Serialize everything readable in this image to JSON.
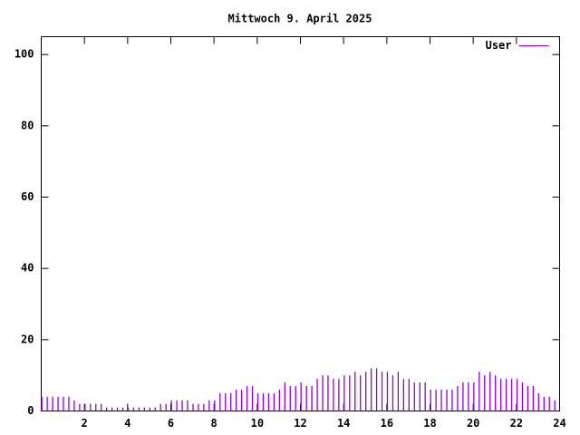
{
  "chart_data": {
    "type": "impulse",
    "title": "Mittwoch 9. April 2025",
    "series": [
      {
        "name": "User",
        "color": "#9400d3",
        "values": [
          4,
          4,
          4,
          4,
          4,
          4,
          3,
          2,
          2,
          2,
          2,
          2,
          1,
          1,
          1,
          1,
          1,
          1,
          1,
          1,
          1,
          1,
          2,
          2,
          3,
          3,
          3,
          3,
          2,
          2,
          2,
          3,
          3,
          5,
          5,
          5,
          6,
          6,
          7,
          7,
          5,
          5,
          5,
          5,
          6,
          8,
          7,
          7,
          8,
          7,
          7,
          9,
          10,
          10,
          9,
          9,
          10,
          10,
          11,
          10,
          11,
          12,
          12,
          11,
          11,
          10,
          11,
          9,
          9,
          8,
          8,
          8,
          6,
          6,
          6,
          6,
          6,
          7,
          8,
          8,
          8,
          11,
          10,
          11,
          10,
          9,
          9,
          9,
          9,
          8,
          7,
          7,
          5,
          4,
          4,
          3
        ]
      }
    ],
    "x": [
      0,
      0.25,
      0.5,
      0.75,
      1,
      1.25,
      1.5,
      1.75,
      2,
      2.25,
      2.5,
      2.75,
      3,
      3.25,
      3.5,
      3.75,
      4,
      4.25,
      4.5,
      4.75,
      5,
      5.25,
      5.5,
      5.75,
      6,
      6.25,
      6.5,
      6.75,
      7,
      7.25,
      7.5,
      7.75,
      8,
      8.25,
      8.5,
      8.75,
      9,
      9.25,
      9.5,
      9.75,
      10,
      10.25,
      10.5,
      10.75,
      11,
      11.25,
      11.5,
      11.75,
      12,
      12.25,
      12.5,
      12.75,
      13,
      13.25,
      13.5,
      13.75,
      14,
      14.25,
      14.5,
      14.75,
      15,
      15.25,
      15.5,
      15.75,
      16,
      16.25,
      16.5,
      16.75,
      17,
      17.25,
      17.5,
      17.75,
      18,
      18.25,
      18.5,
      18.75,
      19,
      19.25,
      19.5,
      19.75,
      20,
      20.25,
      20.5,
      20.75,
      21,
      21.25,
      21.5,
      21.75,
      22,
      22.25,
      22.5,
      22.75,
      23,
      23.25,
      23.5,
      23.75
    ],
    "xlim": [
      0,
      24
    ],
    "xticks": [
      2,
      4,
      6,
      8,
      10,
      12,
      14,
      16,
      18,
      20,
      22,
      24
    ],
    "ylim": [
      0,
      105
    ],
    "yticks": [
      0,
      20,
      40,
      60,
      80,
      100
    ],
    "legend": "top-right"
  }
}
